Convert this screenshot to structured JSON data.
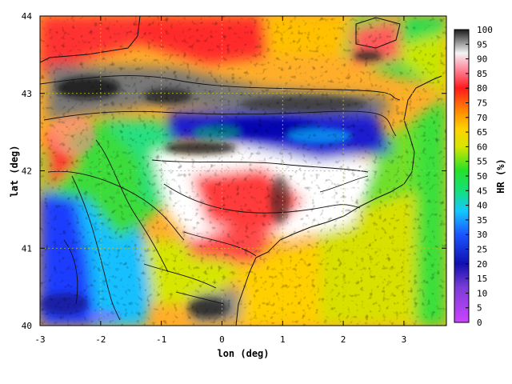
{
  "map": {
    "xlabel": "lon (deg)",
    "ylabel": "lat (deg)",
    "xlim": [
      -3,
      3.7
    ],
    "ylim": [
      40,
      44
    ],
    "xticks": [
      "-3",
      "-2",
      "-1",
      "0",
      "1",
      "2",
      "3"
    ],
    "yticks": [
      "40",
      "41",
      "42",
      "43",
      "44"
    ],
    "grid": "dotted"
  },
  "colorbar": {
    "label": "HR (%)",
    "range": [
      0,
      100
    ],
    "ticks": [
      "0",
      "5",
      "10",
      "15",
      "20",
      "25",
      "30",
      "35",
      "40",
      "45",
      "50",
      "55",
      "60",
      "65",
      "70",
      "75",
      "80",
      "85",
      "90",
      "95",
      "100"
    ],
    "palette": [
      [
        0,
        "#cc44ff"
      ],
      [
        12,
        "#7a3cd6"
      ],
      [
        20,
        "#1010b0"
      ],
      [
        30,
        "#1a55ff"
      ],
      [
        38,
        "#14c8ff"
      ],
      [
        45,
        "#14e07a"
      ],
      [
        52,
        "#28e028"
      ],
      [
        60,
        "#d6e600"
      ],
      [
        66,
        "#ffd200"
      ],
      [
        72,
        "#ff8c00"
      ],
      [
        80,
        "#ff1a1a"
      ],
      [
        86,
        "#ff7f95"
      ],
      [
        92,
        "#f4f4f4"
      ],
      [
        96,
        "#8a8a8a"
      ],
      [
        100,
        "#1a1a1a"
      ]
    ]
  },
  "colors": {
    "frame": "#000000",
    "contours": "#111111",
    "grid": "#c8c800"
  }
}
